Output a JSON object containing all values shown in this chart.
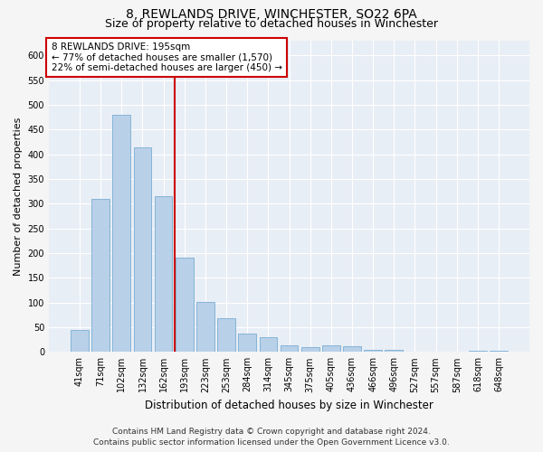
{
  "title": "8, REWLANDS DRIVE, WINCHESTER, SO22 6PA",
  "subtitle": "Size of property relative to detached houses in Winchester",
  "xlabel": "Distribution of detached houses by size in Winchester",
  "ylabel": "Number of detached properties",
  "categories": [
    "41sqm",
    "71sqm",
    "102sqm",
    "132sqm",
    "162sqm",
    "193sqm",
    "223sqm",
    "253sqm",
    "284sqm",
    "314sqm",
    "345sqm",
    "375sqm",
    "405sqm",
    "436sqm",
    "466sqm",
    "496sqm",
    "527sqm",
    "557sqm",
    "587sqm",
    "618sqm",
    "648sqm"
  ],
  "values": [
    45,
    310,
    480,
    415,
    315,
    190,
    102,
    68,
    37,
    30,
    13,
    10,
    13,
    12,
    5,
    4,
    1,
    0,
    0,
    3,
    3
  ],
  "bar_color": "#b8d0e8",
  "bar_edge_color": "#7aadd4",
  "reference_label": "8 REWLANDS DRIVE: 195sqm",
  "annotation_line1": "← 77% of detached houses are smaller (1,570)",
  "annotation_line2": "22% of semi-detached houses are larger (450) →",
  "annotation_box_color": "#ffffff",
  "annotation_box_edge_color": "#cc0000",
  "vline_color": "#cc0000",
  "ylim": [
    0,
    630
  ],
  "yticks": [
    0,
    50,
    100,
    150,
    200,
    250,
    300,
    350,
    400,
    450,
    500,
    550,
    600
  ],
  "footer_line1": "Contains HM Land Registry data © Crown copyright and database right 2024.",
  "footer_line2": "Contains public sector information licensed under the Open Government Licence v3.0.",
  "plot_bg_color": "#e8eef5",
  "fig_bg_color": "#f5f5f5",
  "grid_color": "#ffffff",
  "title_fontsize": 10,
  "subtitle_fontsize": 9,
  "xlabel_fontsize": 8.5,
  "ylabel_fontsize": 8,
  "tick_fontsize": 7,
  "annotation_fontsize": 7.5,
  "footer_fontsize": 6.5
}
